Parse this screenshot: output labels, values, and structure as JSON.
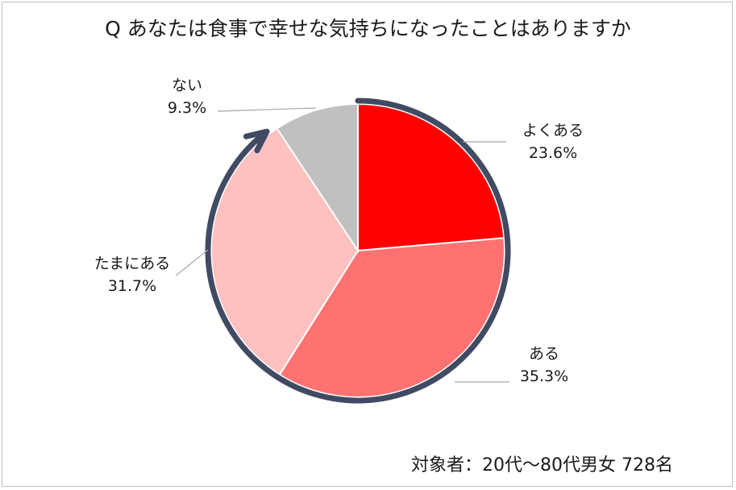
{
  "chart_data": {
    "type": "pie",
    "title": "Q あなたは食事で幸せな気持ちになったことはありますか",
    "categories": [
      "よくある",
      "ある",
      "たまにある",
      "ない"
    ],
    "values": [
      23.6,
      35.3,
      31.7,
      9.3
    ],
    "value_labels": [
      "23.6%",
      "35.3%",
      "31.7%",
      "9.3%"
    ],
    "colors": [
      "#ff0000",
      "#ff7272",
      "#ffc0c0",
      "#c0c0c0"
    ],
    "start": "12 o'clock",
    "direction": "clockwise",
    "legend": "none",
    "arrow_color": "#404b63"
  },
  "footnote": "対象者：20代～80代男女 728名"
}
